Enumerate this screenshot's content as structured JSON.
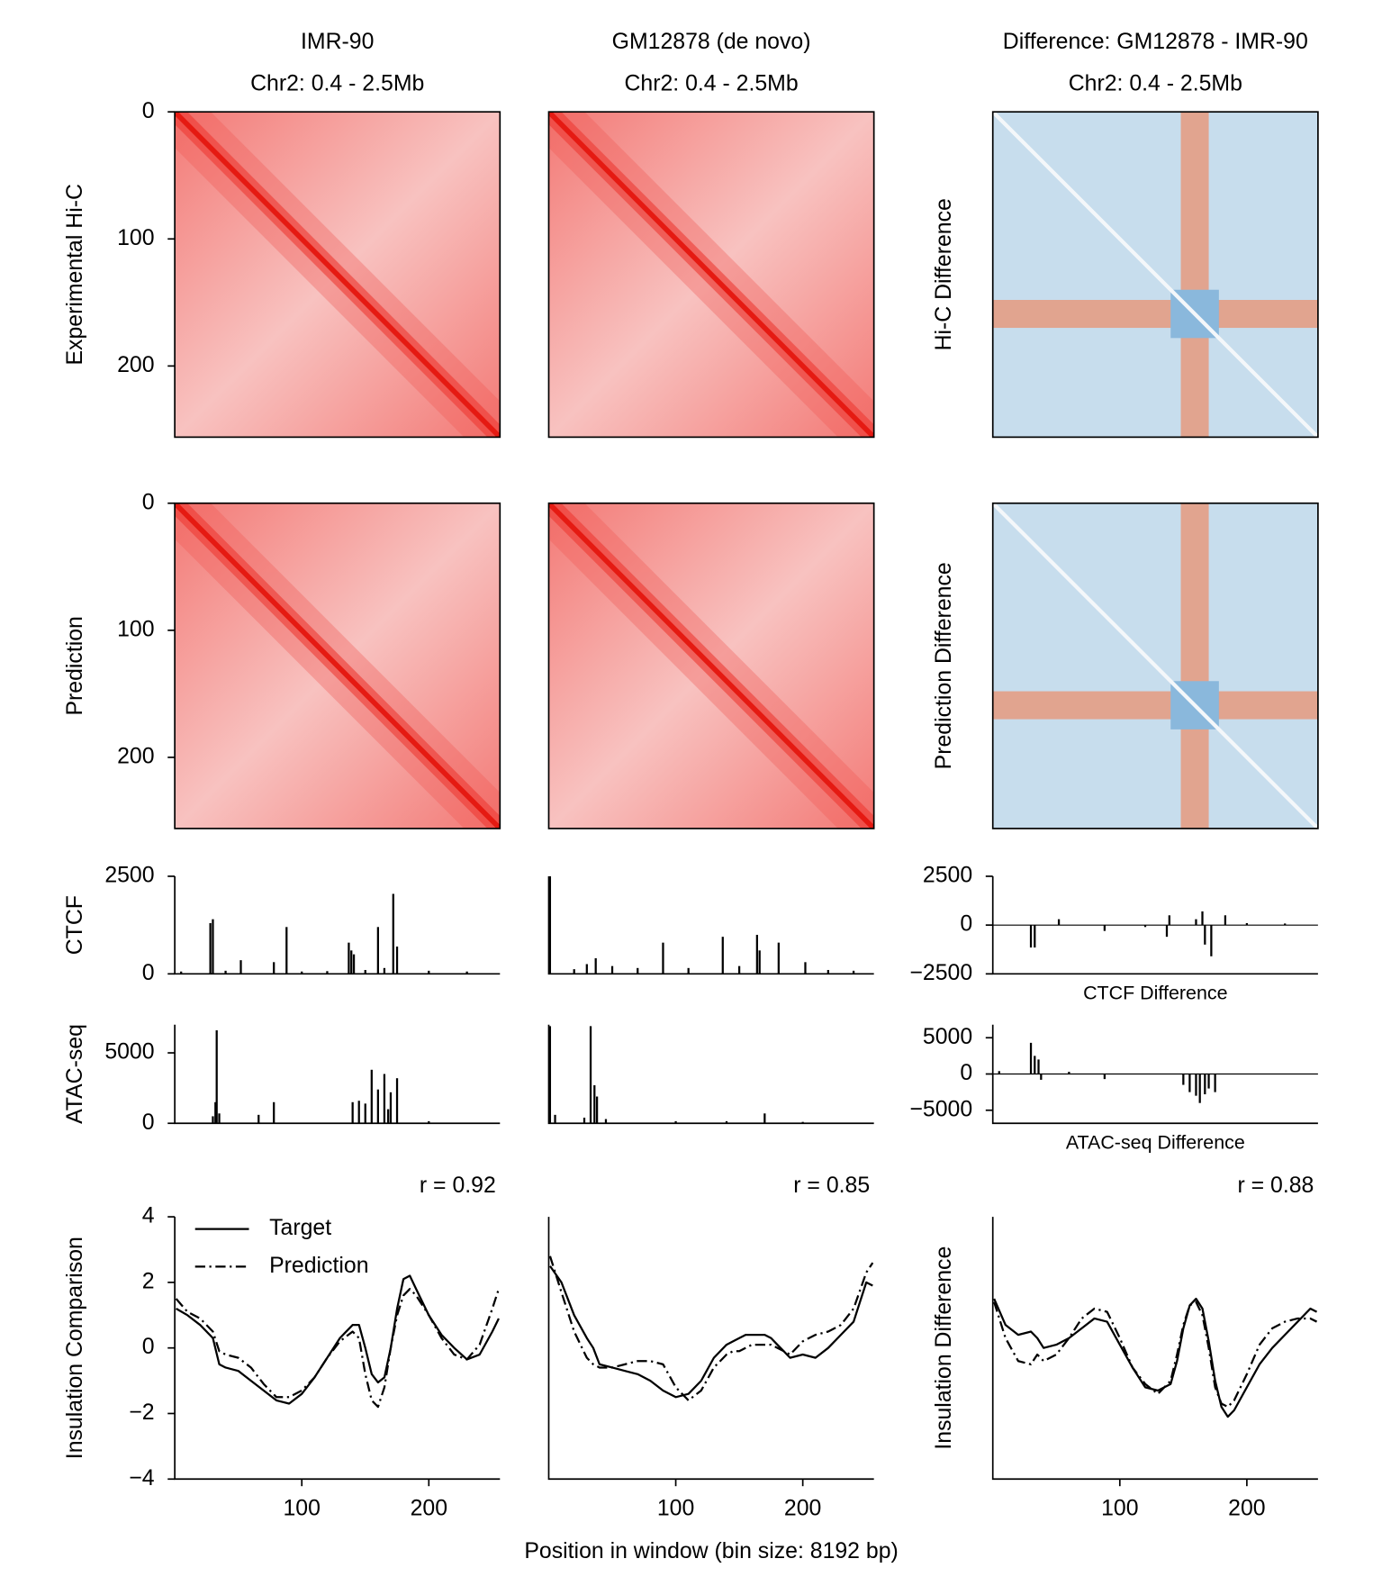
{
  "chart_data": [
    {
      "type": "heatmap",
      "title": "IMR-90",
      "subtitle": "Chr2: 0.4 - 2.5Mb",
      "ylabel": "Experimental Hi-C",
      "colormap": "Reds",
      "ylim": [
        0,
        256
      ],
      "yticks": [
        0,
        100,
        200
      ]
    },
    {
      "type": "heatmap",
      "title": "GM12878 (de novo)",
      "subtitle": "Chr2: 0.4 - 2.5Mb",
      "colormap": "Reds"
    },
    {
      "type": "heatmap",
      "title": "Difference: GM12878 - IMR-90",
      "subtitle": "Chr2: 0.4 - 2.5Mb",
      "ylabel": "Hi-C Difference",
      "colormap": "RdBu_r"
    },
    {
      "type": "heatmap",
      "ylabel": "Prediction",
      "colormap": "Reds",
      "ylim": [
        0,
        256
      ],
      "yticks": [
        0,
        100,
        200
      ]
    },
    {
      "type": "heatmap",
      "colormap": "Reds"
    },
    {
      "type": "heatmap",
      "ylabel": "Prediction Difference",
      "colormap": "RdBu_r"
    },
    {
      "type": "bar",
      "ylabel": "CTCF",
      "color": "#000000",
      "xlim": [
        0,
        256
      ],
      "ylim": [
        0,
        2500
      ],
      "yticks": [
        0,
        2500
      ],
      "x": [
        5,
        28,
        30,
        40,
        52,
        78,
        88,
        100,
        120,
        137,
        139,
        141,
        150,
        160,
        165,
        172,
        175,
        200,
        230
      ],
      "values": [
        60,
        1300,
        1400,
        80,
        350,
        300,
        1200,
        60,
        70,
        800,
        600,
        500,
        100,
        1200,
        150,
        2050,
        700,
        80,
        60
      ]
    },
    {
      "type": "bar",
      "color": "#000000",
      "xlim": [
        0,
        256
      ],
      "ylim": [
        0,
        2500
      ],
      "x": [
        1,
        20,
        30,
        37,
        50,
        70,
        90,
        110,
        137,
        150,
        164,
        166,
        181,
        202,
        220,
        240
      ],
      "values": [
        2500,
        120,
        250,
        400,
        200,
        150,
        800,
        150,
        950,
        200,
        1000,
        600,
        800,
        300,
        100,
        80
      ]
    },
    {
      "type": "bar",
      "xlabel": "CTCF Difference",
      "color": "#000000",
      "xlim": [
        0,
        256
      ],
      "ylim": [
        -2500,
        2500
      ],
      "yticks": [
        {
          "value": -2500,
          "label": "−2500"
        },
        0,
        2500
      ],
      "x": [
        30,
        33,
        52,
        88,
        120,
        137,
        139,
        160,
        165,
        167,
        172,
        183,
        200,
        230
      ],
      "values": [
        -1150,
        -1150,
        300,
        -300,
        -100,
        -600,
        500,
        300,
        700,
        -1000,
        -1600,
        500,
        100,
        80
      ]
    },
    {
      "type": "bar",
      "ylabel": "ATAC-seq",
      "color": "#000000",
      "xlim": [
        0,
        256
      ],
      "ylim": [
        0,
        7000
      ],
      "yticks": [
        0,
        5000
      ],
      "x": [
        30,
        32,
        33,
        35,
        66,
        78,
        140,
        145,
        150,
        155,
        160,
        165,
        168,
        170,
        175,
        200
      ],
      "values": [
        500,
        1500,
        6600,
        700,
        600,
        1500,
        1500,
        1600,
        1400,
        3800,
        2400,
        3500,
        1000,
        2200,
        3200,
        150
      ]
    },
    {
      "type": "bar",
      "color": "#000000",
      "xlim": [
        0,
        256
      ],
      "ylim": [
        0,
        7000
      ],
      "x": [
        1,
        5,
        28,
        33,
        36,
        38,
        45,
        100,
        140,
        170,
        200
      ],
      "values": [
        6900,
        600,
        400,
        6900,
        2700,
        1900,
        300,
        150,
        150,
        700,
        100
      ]
    },
    {
      "type": "bar",
      "xlabel": "ATAC-seq Difference",
      "color": "#000000",
      "xlim": [
        0,
        256
      ],
      "ylim": [
        -6800,
        6800
      ],
      "yticks": [
        {
          "value": -5000,
          "label": "−5000"
        },
        0,
        5000
      ],
      "x": [
        5,
        30,
        33,
        36,
        38,
        60,
        88,
        150,
        155,
        160,
        163,
        167,
        170,
        175
      ],
      "values": [
        400,
        4300,
        2500,
        2000,
        -800,
        300,
        -700,
        -1500,
        -2500,
        -3000,
        -4000,
        -2800,
        -2000,
        -2500
      ]
    },
    {
      "type": "line",
      "annotation": "r = 0.92",
      "ylabel": "Insulation Comparison",
      "legend": "upper left",
      "xlim": [
        0,
        256
      ],
      "ylim": [
        -4,
        4
      ],
      "xticks": [
        100,
        200
      ],
      "yticks": [
        {
          "value": -4,
          "label": "−4"
        },
        {
          "value": -2,
          "label": "−2"
        },
        0,
        2,
        4
      ],
      "x": [
        1,
        10,
        20,
        30,
        35,
        40,
        50,
        60,
        70,
        80,
        90,
        100,
        110,
        120,
        130,
        140,
        145,
        150,
        155,
        160,
        165,
        170,
        175,
        180,
        185,
        190,
        200,
        210,
        220,
        230,
        240,
        250,
        255
      ],
      "series": [
        {
          "name": "Target",
          "color": "#000000",
          "dash": "solid",
          "values": [
            1.2,
            1.0,
            0.7,
            0.3,
            -0.5,
            -0.6,
            -0.7,
            -1.0,
            -1.3,
            -1.6,
            -1.7,
            -1.4,
            -0.9,
            -0.3,
            0.3,
            0.7,
            0.7,
            0.0,
            -0.8,
            -1.05,
            -0.9,
            0.0,
            1.2,
            2.1,
            2.2,
            1.8,
            1.0,
            0.4,
            0.0,
            -0.35,
            -0.2,
            0.5,
            0.9
          ]
        },
        {
          "name": "Prediction",
          "color": "#000000",
          "dash": "dashdot",
          "values": [
            1.5,
            1.1,
            0.9,
            0.5,
            -0.1,
            -0.2,
            -0.3,
            -0.6,
            -1.1,
            -1.5,
            -1.5,
            -1.3,
            -0.9,
            -0.3,
            0.2,
            0.5,
            0.3,
            -0.8,
            -1.6,
            -1.8,
            -1.2,
            0.0,
            1.0,
            1.6,
            1.8,
            1.6,
            1.0,
            0.3,
            -0.2,
            -0.35,
            0.1,
            1.2,
            1.8
          ]
        }
      ]
    },
    {
      "type": "line",
      "annotation": "r = 0.85",
      "xlabel": "Position in window (bin size: 8192 bp)",
      "xlim": [
        0,
        256
      ],
      "ylim": [
        -4,
        4
      ],
      "xticks": [
        100,
        200
      ],
      "x": [
        1,
        10,
        20,
        30,
        35,
        40,
        50,
        60,
        70,
        80,
        90,
        100,
        110,
        120,
        130,
        140,
        145,
        150,
        155,
        160,
        165,
        170,
        175,
        180,
        185,
        190,
        200,
        210,
        220,
        230,
        240,
        250,
        255
      ],
      "series": [
        {
          "color": "#000000",
          "dash": "solid",
          "values": [
            2.5,
            2.0,
            1.0,
            0.3,
            0.0,
            -0.5,
            -0.6,
            -0.7,
            -0.8,
            -1.0,
            -1.3,
            -1.5,
            -1.4,
            -1.0,
            -0.3,
            0.1,
            0.2,
            0.3,
            0.4,
            0.4,
            0.4,
            0.4,
            0.3,
            0.1,
            -0.1,
            -0.3,
            -0.2,
            -0.3,
            0.0,
            0.4,
            0.8,
            2.0,
            1.9
          ]
        },
        {
          "color": "#000000",
          "dash": "dashdot",
          "values": [
            2.8,
            1.7,
            0.5,
            -0.3,
            -0.5,
            -0.6,
            -0.6,
            -0.5,
            -0.4,
            -0.4,
            -0.5,
            -1.2,
            -1.6,
            -1.3,
            -0.6,
            -0.2,
            -0.1,
            -0.1,
            0.0,
            0.1,
            0.1,
            0.1,
            0.1,
            0.0,
            -0.1,
            -0.2,
            0.2,
            0.4,
            0.5,
            0.7,
            1.2,
            2.3,
            2.6
          ]
        }
      ]
    },
    {
      "type": "line",
      "annotation": "r = 0.88",
      "ylabel": "Insulation Difference",
      "xlim": [
        0,
        256
      ],
      "ylim": [
        -4,
        4
      ],
      "xticks": [
        100,
        200
      ],
      "x": [
        1,
        10,
        20,
        30,
        35,
        40,
        50,
        60,
        70,
        80,
        90,
        100,
        110,
        120,
        130,
        140,
        145,
        150,
        155,
        160,
        165,
        170,
        175,
        180,
        185,
        190,
        200,
        210,
        220,
        230,
        240,
        250,
        255
      ],
      "series": [
        {
          "color": "#000000",
          "dash": "solid",
          "values": [
            1.5,
            0.7,
            0.4,
            0.5,
            0.3,
            0.0,
            0.1,
            0.3,
            0.6,
            0.9,
            0.8,
            0.1,
            -0.6,
            -1.2,
            -1.3,
            -1.1,
            -0.4,
            0.6,
            1.3,
            1.5,
            1.2,
            0.2,
            -1.0,
            -1.8,
            -2.1,
            -1.9,
            -1.2,
            -0.5,
            0.0,
            0.4,
            0.8,
            1.2,
            1.1
          ]
        },
        {
          "color": "#000000",
          "dash": "dashdot",
          "values": [
            1.4,
            0.3,
            -0.4,
            -0.5,
            -0.2,
            -0.4,
            -0.2,
            0.3,
            0.9,
            1.2,
            1.1,
            0.3,
            -0.6,
            -1.1,
            -1.4,
            -1.0,
            -0.2,
            0.7,
            1.3,
            1.4,
            1.0,
            0.0,
            -1.2,
            -1.7,
            -1.8,
            -1.6,
            -0.8,
            0.1,
            0.6,
            0.8,
            0.9,
            0.9,
            0.8
          ]
        }
      ]
    }
  ]
}
